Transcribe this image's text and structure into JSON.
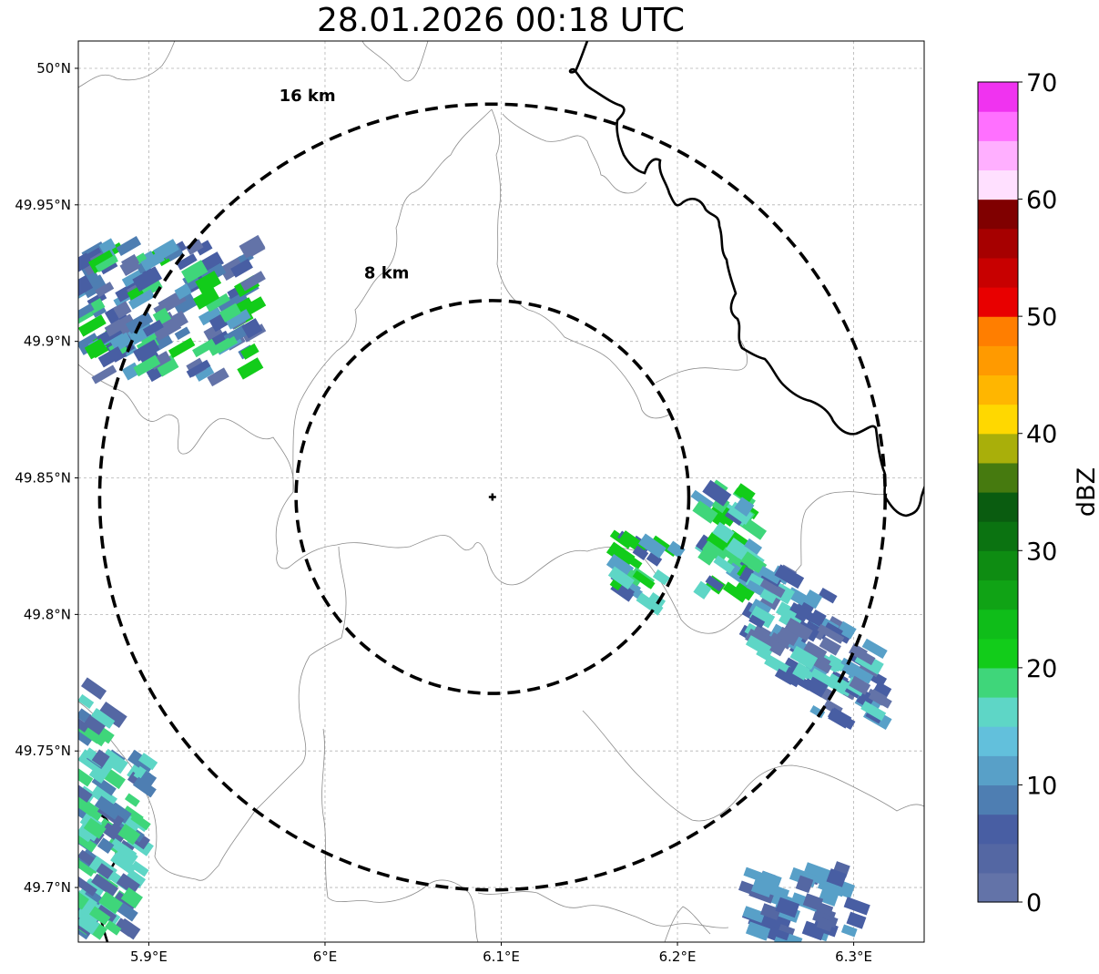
{
  "title": "28.01.2026 00:18 UTC",
  "map": {
    "lon_range": [
      5.86,
      6.34
    ],
    "lat_range": [
      49.68,
      50.01
    ],
    "x_ticks": [
      {
        "value": 5.9,
        "label": "5.9°E"
      },
      {
        "value": 6.0,
        "label": "6°E"
      },
      {
        "value": 6.1,
        "label": "6.1°E"
      },
      {
        "value": 6.2,
        "label": "6.2°E"
      },
      {
        "value": 6.3,
        "label": "6.3°E"
      }
    ],
    "y_ticks": [
      {
        "value": 50.0,
        "label": "50°N"
      },
      {
        "value": 49.95,
        "label": "49.95°N"
      },
      {
        "value": 49.9,
        "label": "49.9°N"
      },
      {
        "value": 49.85,
        "label": "49.85°N"
      },
      {
        "value": 49.8,
        "label": "49.8°N"
      },
      {
        "value": 49.75,
        "label": "49.75°N"
      },
      {
        "value": 49.7,
        "label": "49.7°N"
      }
    ],
    "radar_center": {
      "lon": 6.095,
      "lat": 49.843
    },
    "range_rings": [
      {
        "km": 8,
        "label": "8 km",
        "label_lon": 6.035,
        "label_lat": 49.923
      },
      {
        "km": 16,
        "label": "16 km",
        "label_lon": 5.99,
        "label_lat": 49.988
      }
    ]
  },
  "colorbar": {
    "label": "dBZ",
    "min": 0,
    "max": 70,
    "step": 2.5,
    "tick_labels": [
      "0",
      "10",
      "20",
      "30",
      "40",
      "50",
      "60",
      "70"
    ],
    "colors": [
      "#6373a8",
      "#5467a3",
      "#485ea3",
      "#4e7eb2",
      "#58a0c8",
      "#62c0dc",
      "#5ed6c6",
      "#3fd67a",
      "#12cc1a",
      "#0fbd19",
      "#10a315",
      "#0e8c12",
      "#0b7311",
      "#0a5c10",
      "#467a0f",
      "#a9af0a",
      "#ffd800",
      "#ffb600",
      "#ff9a00",
      "#ff7e00",
      "#e80000",
      "#c80000",
      "#a60000",
      "#800000",
      "#ffe0ff",
      "#ffafff",
      "#ff70ff",
      "#f033f0"
    ]
  },
  "echo_clusters": [
    {
      "name": "northwest",
      "dbz": [
        2,
        5,
        8,
        12,
        18,
        20
      ]
    },
    {
      "name": "east-near",
      "dbz": [
        5,
        10,
        15,
        18,
        21
      ]
    },
    {
      "name": "southeast",
      "dbz": [
        2,
        6,
        12,
        15
      ]
    },
    {
      "name": "southwest",
      "dbz": [
        3,
        8,
        15,
        19
      ]
    },
    {
      "name": "south-bottom",
      "dbz": [
        3,
        6,
        12
      ]
    }
  ]
}
